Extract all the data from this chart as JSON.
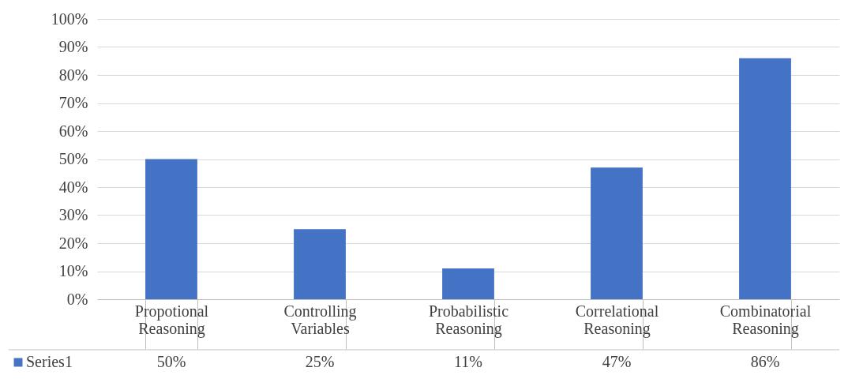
{
  "chart_data": {
    "type": "bar",
    "categories": [
      "Propotional Reasoning",
      "Controlling Variables",
      "Probabilistic Reasoning",
      "Correlational Reasoning",
      "Combinatorial Reasoning"
    ],
    "series": [
      {
        "name": "Series1",
        "color": "#4472c4",
        "values": [
          50,
          25,
          11,
          47,
          86
        ],
        "value_labels": [
          "50%",
          "25%",
          "11%",
          "47%",
          "86%"
        ]
      }
    ],
    "ylim": [
      0,
      100
    ],
    "yticks": [
      {
        "value": 0,
        "label": "0%"
      },
      {
        "value": 10,
        "label": "10%"
      },
      {
        "value": 20,
        "label": "20%"
      },
      {
        "value": 30,
        "label": "30%"
      },
      {
        "value": 40,
        "label": "40%"
      },
      {
        "value": 50,
        "label": "50%"
      },
      {
        "value": 60,
        "label": "60%"
      },
      {
        "value": 70,
        "label": "70%"
      },
      {
        "value": 80,
        "label": "80%"
      },
      {
        "value": 90,
        "label": "90%"
      },
      {
        "value": 100,
        "label": "100%"
      }
    ],
    "grid": "y"
  }
}
